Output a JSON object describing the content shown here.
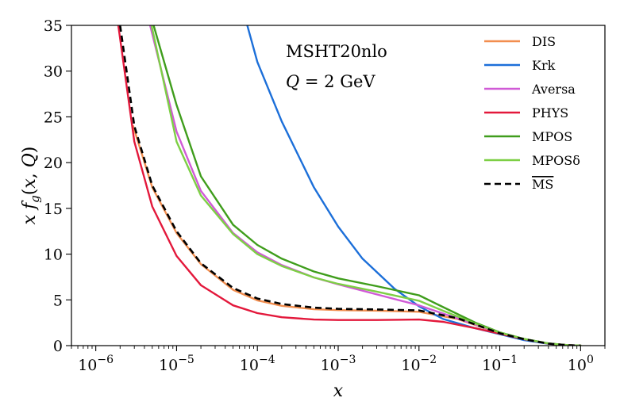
{
  "chart_data": {
    "type": "line",
    "title": "",
    "xlabel": "x",
    "ylabel": "x f_g(x, Q)",
    "xscale": "log",
    "xlim": [
      5e-07,
      2
    ],
    "ylim": [
      0,
      35
    ],
    "x_ticks": [
      {
        "value": 1e-06,
        "base": "10",
        "exp": "−6"
      },
      {
        "value": 1e-05,
        "base": "10",
        "exp": "−5"
      },
      {
        "value": 0.0001,
        "base": "10",
        "exp": "−4"
      },
      {
        "value": 0.001,
        "base": "10",
        "exp": "−3"
      },
      {
        "value": 0.01,
        "base": "10",
        "exp": "−2"
      },
      {
        "value": 0.1,
        "base": "10",
        "exp": "−1"
      },
      {
        "value": 1,
        "base": "10",
        "exp": "0"
      }
    ],
    "y_ticks": [
      "0",
      "5",
      "10",
      "15",
      "20",
      "25",
      "30",
      "35"
    ],
    "grid": false,
    "legend_position": "top-right",
    "annotations": [
      "MSHT20nlo",
      "Q = 2 GeV"
    ],
    "series": [
      {
        "name": "DIS",
        "color": "#f28e4f",
        "dash": "solid",
        "x": [
          2.9e-06,
          5e-06,
          1e-05,
          2e-05,
          5e-05,
          0.0001,
          0.0002,
          0.0005,
          0.001,
          0.003,
          0.01,
          0.03,
          0.1,
          0.2,
          0.4,
          0.7,
          1
        ],
        "y": [
          24,
          17.3,
          12.3,
          8.9,
          6.1,
          4.95,
          4.35,
          3.98,
          3.88,
          3.82,
          3.7,
          2.9,
          1.35,
          0.7,
          0.22,
          0.04,
          0
        ]
      },
      {
        "name": "Krk",
        "color": "#1c6fd9",
        "dash": "solid",
        "x": [
          7.5e-05,
          0.0001,
          0.0002,
          0.0005,
          0.001,
          0.002,
          0.005,
          0.01,
          0.02,
          0.05,
          0.1,
          0.2,
          0.4,
          0.7,
          1
        ],
        "y": [
          35,
          31,
          24.5,
          17.3,
          13,
          9.5,
          6.2,
          4.3,
          2.9,
          1.9,
          1.25,
          0.6,
          0.2,
          0.04,
          0
        ]
      },
      {
        "name": "Aversa",
        "color": "#d05ad6",
        "dash": "solid",
        "x": [
          4.7e-06,
          1e-05,
          2e-05,
          5e-05,
          0.0001,
          0.0002,
          0.0005,
          0.001,
          0.003,
          0.01,
          0.02,
          0.05,
          0.1,
          0.2,
          0.4,
          0.7,
          1
        ],
        "y": [
          35,
          23.4,
          16.9,
          12.3,
          10.2,
          8.8,
          7.45,
          6.7,
          5.6,
          4.4,
          3.5,
          2.3,
          1.4,
          0.72,
          0.23,
          0.04,
          0
        ]
      },
      {
        "name": "PHYS",
        "color": "#e3183b",
        "dash": "solid",
        "x": [
          1.9e-06,
          3e-06,
          5e-06,
          1e-05,
          2e-05,
          5e-05,
          0.0001,
          0.0002,
          0.0005,
          0.001,
          0.003,
          0.01,
          0.02,
          0.05,
          0.1,
          0.2,
          0.4,
          0.7,
          1
        ],
        "y": [
          35,
          22.3,
          15.2,
          9.8,
          6.6,
          4.4,
          3.55,
          3.1,
          2.85,
          2.8,
          2.8,
          2.85,
          2.6,
          1.9,
          1.3,
          0.7,
          0.22,
          0.04,
          0
        ]
      },
      {
        "name": "MPOS",
        "color": "#3f9d1c",
        "dash": "solid",
        "x": [
          5.2e-06,
          1e-05,
          2e-05,
          5e-05,
          0.0001,
          0.0002,
          0.0005,
          0.001,
          0.003,
          0.01,
          0.02,
          0.05,
          0.1,
          0.2,
          0.4,
          0.7,
          1
        ],
        "y": [
          35,
          26.3,
          18.5,
          13.2,
          11,
          9.5,
          8.1,
          7.35,
          6.5,
          5.5,
          4.2,
          2.5,
          1.45,
          0.74,
          0.24,
          0.04,
          0
        ]
      },
      {
        "name": "MPOSδ",
        "color": "#7dcf45",
        "dash": "solid",
        "x": [
          4.9e-06,
          1e-05,
          2e-05,
          5e-05,
          0.0001,
          0.0002,
          0.0005,
          0.001,
          0.003,
          0.01,
          0.02,
          0.05,
          0.1,
          0.2,
          0.4,
          0.7,
          1
        ],
        "y": [
          35,
          22.3,
          16.4,
          12.2,
          10,
          8.7,
          7.45,
          6.75,
          5.9,
          4.9,
          3.8,
          2.4,
          1.42,
          0.73,
          0.23,
          0.04,
          0
        ]
      },
      {
        "name": "MS",
        "color": "#000000",
        "dash": "dashed",
        "overline": true,
        "x": [
          2e-06,
          3e-06,
          5e-06,
          1e-05,
          2e-05,
          5e-05,
          0.0001,
          0.0002,
          0.0005,
          0.001,
          0.003,
          0.01,
          0.03,
          0.1,
          0.2,
          0.4,
          0.7,
          1
        ],
        "y": [
          35,
          24,
          17.5,
          12.5,
          9,
          6.3,
          5.15,
          4.55,
          4.15,
          4.02,
          3.95,
          3.85,
          3.0,
          1.35,
          0.7,
          0.22,
          0.04,
          0
        ]
      }
    ]
  }
}
